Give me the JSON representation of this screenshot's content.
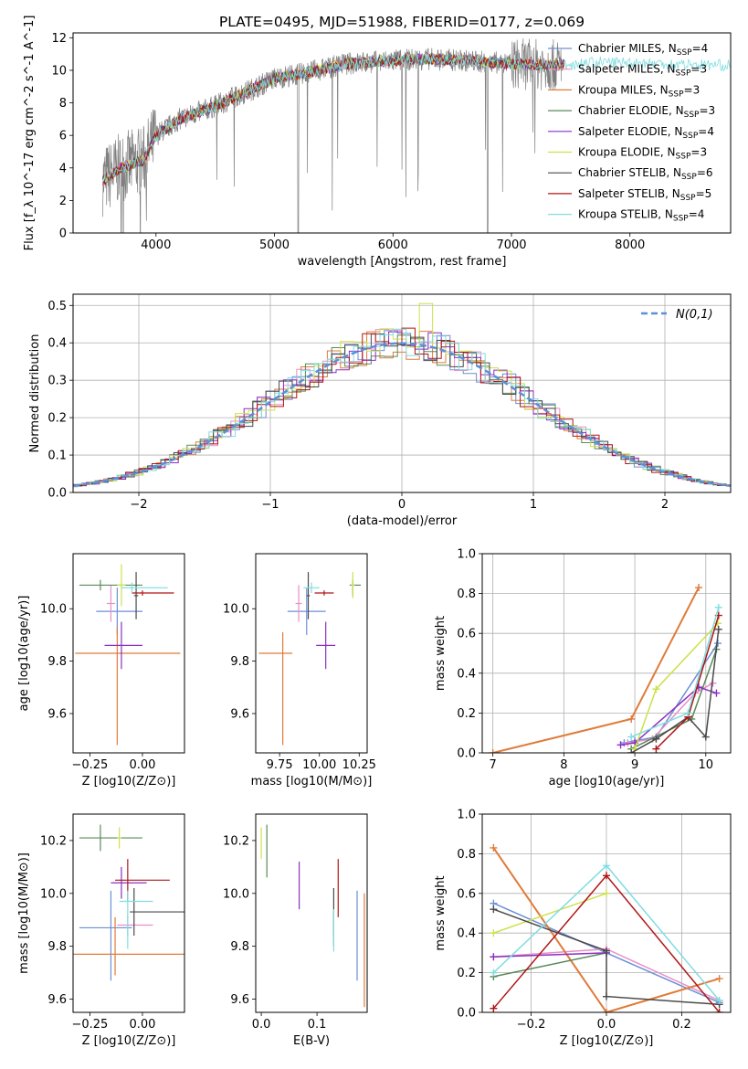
{
  "figure": {
    "title": "PLATE=0495, MJD=51988, FIBERID=0177, z=0.069"
  },
  "series": [
    {
      "name": "Chabrier MILES",
      "nssp": "4",
      "color": "#6b8fd6"
    },
    {
      "name": "Salpeter MILES",
      "nssp": "3",
      "color": "#e88fc7"
    },
    {
      "name": "Kroupa MILES",
      "nssp": "3",
      "color": "#e07b39"
    },
    {
      "name": "Chabrier ELODIE",
      "nssp": "3",
      "color": "#5a8a5a"
    },
    {
      "name": "Salpeter ELODIE",
      "nssp": "4",
      "color": "#8b2fc0"
    },
    {
      "name": "Kroupa ELODIE",
      "nssp": "3",
      "color": "#cde04a"
    },
    {
      "name": "Chabrier STELIB",
      "nssp": "6",
      "color": "#4a4a4a"
    },
    {
      "name": "Salpeter STELIB",
      "nssp": "5",
      "color": "#b01515"
    },
    {
      "name": "Kroupa STELIB",
      "nssp": "4",
      "color": "#7fdde0"
    }
  ],
  "chart_data": [
    {
      "id": "spectrum",
      "type": "line",
      "xlabel": "wavelength [Angstrom, rest frame]",
      "ylabel": "Flux [f_λ 10^-17 erg cm^-2 s^-1 A^-1]",
      "xlim": [
        3300,
        8850
      ],
      "ylim": [
        0,
        12.3
      ],
      "xticks": [
        4000,
        5000,
        6000,
        7000,
        8000
      ],
      "yticks": [
        0,
        2,
        4,
        6,
        8,
        10,
        12
      ],
      "data_color": "#808080",
      "data_wavelength_range": [
        3550,
        7420
      ],
      "continuum": {
        "x": [
          3550,
          3700,
          3900,
          4000,
          4200,
          4500,
          4800,
          5000,
          5300,
          5600,
          6000,
          6300,
          6600,
          7000,
          7400,
          7700,
          8000,
          8300,
          8850
        ],
        "y": [
          3.2,
          4.0,
          4.5,
          6.0,
          7.0,
          7.8,
          8.8,
          9.5,
          9.9,
          10.4,
          10.6,
          10.7,
          10.6,
          10.4,
          10.3,
          10.5,
          10.5,
          10.4,
          10.3
        ]
      },
      "legend_location": "right"
    },
    {
      "id": "residuals",
      "type": "histogram",
      "xlabel": "(data-model)/error",
      "ylabel": "Normed distribution",
      "xlim": [
        -2.5,
        2.5
      ],
      "ylim": [
        0,
        0.53
      ],
      "xticks": [
        -2,
        -1,
        0,
        1,
        2
      ],
      "yticks": [
        0.0,
        0.1,
        0.2,
        0.3,
        0.4,
        0.5
      ],
      "reference_curve": {
        "name": "N(0,1)",
        "color": "#5b8fd9",
        "style": "dashed"
      },
      "legend_location": "top-right",
      "grid": true
    },
    {
      "id": "age_vs_Z",
      "type": "errorbar",
      "xlabel": "Z [log10(Z/Z⊙)]",
      "ylabel": "age [log10(age/yr)]",
      "xlim": [
        -0.33,
        0.2
      ],
      "ylim": [
        9.45,
        10.21
      ],
      "xticks": [
        -0.25,
        0.0
      ],
      "yticks": [
        9.6,
        9.8,
        10.0
      ],
      "points": [
        {
          "series": 0,
          "x": -0.12,
          "y": 9.99,
          "xerr": [
            0.1,
            0.12
          ],
          "yerr": [
            0.09,
            0.09
          ]
        },
        {
          "series": 1,
          "x": -0.15,
          "y": 10.02,
          "xerr": [
            0.02,
            0.02
          ],
          "yerr": [
            0.07,
            0.07
          ]
        },
        {
          "series": 2,
          "x": -0.12,
          "y": 9.83,
          "xerr": [
            0.2,
            0.3
          ],
          "yerr": [
            0.35,
            0.1
          ]
        },
        {
          "series": 3,
          "x": -0.2,
          "y": 10.09,
          "xerr": [
            0.1,
            0.2
          ],
          "yerr": [
            0.02,
            0.02
          ]
        },
        {
          "series": 4,
          "x": -0.1,
          "y": 9.86,
          "xerr": [
            0.08,
            0.1
          ],
          "yerr": [
            0.09,
            0.09
          ]
        },
        {
          "series": 5,
          "x": -0.1,
          "y": 10.09,
          "xerr": [
            0.02,
            0.02
          ],
          "yerr": [
            0.08,
            0.08
          ]
        },
        {
          "series": 6,
          "x": -0.03,
          "y": 10.05,
          "xerr": [
            0.01,
            0.01
          ],
          "yerr": [
            0.09,
            0.09
          ]
        },
        {
          "series": 7,
          "x": 0.0,
          "y": 10.06,
          "xerr": [
            0.05,
            0.15
          ],
          "yerr": [
            0.01,
            0.01
          ]
        },
        {
          "series": 8,
          "x": -0.05,
          "y": 10.08,
          "xerr": [
            0.05,
            0.17
          ],
          "yerr": [
            0.02,
            0.02
          ]
        }
      ]
    },
    {
      "id": "age_vs_mass",
      "type": "errorbar",
      "xlabel": "mass [log10(M/M⊙)]",
      "xlim": [
        9.6,
        10.3
      ],
      "ylim": [
        9.45,
        10.21
      ],
      "xticks": [
        9.75,
        10.0,
        10.25
      ],
      "yticks": [
        9.6,
        9.8,
        10.0
      ],
      "points": [
        {
          "series": 0,
          "x": 9.92,
          "y": 9.99,
          "xerr": [
            0.12,
            0.12
          ],
          "yerr": [
            0.09,
            0.09
          ]
        },
        {
          "series": 1,
          "x": 9.87,
          "y": 10.02,
          "xerr": [
            0.02,
            0.02
          ],
          "yerr": [
            0.07,
            0.07
          ]
        },
        {
          "series": 2,
          "x": 9.77,
          "y": 9.83,
          "xerr": [
            0.15,
            0.06
          ],
          "yerr": [
            0.35,
            0.08
          ]
        },
        {
          "series": 3,
          "x": 10.21,
          "y": 10.09,
          "xerr": [
            0.02,
            0.05
          ],
          "yerr": [
            0.04,
            0.02
          ]
        },
        {
          "series": 4,
          "x": 10.04,
          "y": 9.86,
          "xerr": [
            0.06,
            0.06
          ],
          "yerr": [
            0.09,
            0.09
          ]
        },
        {
          "series": 5,
          "x": 10.21,
          "y": 10.09,
          "xerr": [
            0.01,
            0.01
          ],
          "yerr": [
            0.05,
            0.05
          ]
        },
        {
          "series": 6,
          "x": 9.93,
          "y": 10.05,
          "xerr": [
            0.01,
            0.01
          ],
          "yerr": [
            0.09,
            0.09
          ]
        },
        {
          "series": 7,
          "x": 10.03,
          "y": 10.06,
          "xerr": [
            0.06,
            0.06
          ],
          "yerr": [
            0.01,
            0.01
          ]
        },
        {
          "series": 8,
          "x": 9.95,
          "y": 10.08,
          "xerr": [
            0.05,
            0.05
          ],
          "yerr": [
            0.02,
            0.02
          ]
        }
      ]
    },
    {
      "id": "weight_vs_age",
      "type": "line",
      "xlabel": "age [log10(age/yr)]",
      "ylabel": "mass weight",
      "xlim": [
        6.85,
        10.35
      ],
      "ylim": [
        0,
        1.0
      ],
      "xticks": [
        7,
        8,
        9,
        10
      ],
      "yticks": [
        0.0,
        0.2,
        0.4,
        0.6,
        0.8,
        1.0
      ],
      "grid": true,
      "series_points": [
        {
          "series": 0,
          "x": [
            8.85,
            9.0,
            9.3,
            10.17
          ],
          "y": [
            0.05,
            0.06,
            0.08,
            0.55
          ]
        },
        {
          "series": 1,
          "x": [
            8.9,
            9.25,
            9.85,
            10.1
          ],
          "y": [
            0.05,
            0.07,
            0.3,
            0.35
          ]
        },
        {
          "series": 2,
          "x": [
            7.0,
            8.95,
            9.9
          ],
          "y": [
            0.0,
            0.17,
            0.83
          ]
        },
        {
          "series": 3,
          "x": [
            8.95,
            9.8,
            10.15
          ],
          "y": [
            0.02,
            0.17,
            0.52
          ]
        },
        {
          "series": 4,
          "x": [
            8.8,
            9.0,
            9.9,
            10.15
          ],
          "y": [
            0.04,
            0.05,
            0.33,
            0.3
          ]
        },
        {
          "series": 5,
          "x": [
            9.0,
            9.3,
            10.17
          ],
          "y": [
            0.02,
            0.32,
            0.65
          ]
        },
        {
          "series": 6,
          "x": [
            8.95,
            9.3,
            9.75,
            10.0,
            10.18
          ],
          "y": [
            0.0,
            0.07,
            0.18,
            0.08,
            0.62
          ]
        },
        {
          "series": 7,
          "x": [
            9.3,
            9.75,
            10.18
          ],
          "y": [
            0.02,
            0.18,
            0.69
          ]
        },
        {
          "series": 8,
          "x": [
            8.95,
            9.75,
            10.18
          ],
          "y": [
            0.08,
            0.2,
            0.73
          ]
        }
      ]
    },
    {
      "id": "mass_vs_Z",
      "type": "errorbar",
      "xlabel": "Z [log10(Z/Z⊙)]",
      "ylabel": "mass [log10(M/M⊙)]",
      "xlim": [
        -0.33,
        0.2
      ],
      "ylim": [
        9.55,
        10.3
      ],
      "xticks": [
        -0.25,
        0.0
      ],
      "yticks": [
        9.6,
        9.8,
        10.0,
        10.2
      ],
      "points": [
        {
          "series": 0,
          "x": -0.15,
          "y": 9.87,
          "xerr": [
            0.15,
            0.1
          ],
          "yerr": [
            0.2,
            0.14
          ]
        },
        {
          "series": 1,
          "x": -0.07,
          "y": 9.88,
          "xerr": [
            0.05,
            0.12
          ],
          "yerr": [
            0.04,
            0.04
          ]
        },
        {
          "series": 2,
          "x": -0.13,
          "y": 9.77,
          "xerr": [
            0.2,
            0.33
          ],
          "yerr": [
            0.08,
            0.14
          ]
        },
        {
          "series": 3,
          "x": -0.2,
          "y": 10.21,
          "xerr": [
            0.1,
            0.2
          ],
          "yerr": [
            0.05,
            0.05
          ]
        },
        {
          "series": 4,
          "x": -0.1,
          "y": 10.04,
          "xerr": [
            0.05,
            0.12
          ],
          "yerr": [
            0.06,
            0.06
          ]
        },
        {
          "series": 5,
          "x": -0.11,
          "y": 10.21,
          "xerr": [
            0.01,
            0.01
          ],
          "yerr": [
            0.04,
            0.04
          ]
        },
        {
          "series": 6,
          "x": -0.04,
          "y": 9.93,
          "xerr": [
            0.02,
            0.24
          ],
          "yerr": [
            0.09,
            0.09
          ]
        },
        {
          "series": 7,
          "x": -0.07,
          "y": 10.05,
          "xerr": [
            0.06,
            0.2
          ],
          "yerr": [
            0.08,
            0.08
          ]
        },
        {
          "series": 8,
          "x": -0.07,
          "y": 9.97,
          "xerr": [
            0.04,
            0.12
          ],
          "yerr": [
            0.18,
            0.04
          ]
        }
      ]
    },
    {
      "id": "mass_vs_EBV",
      "type": "errorbar",
      "xlabel": "E(B-V)",
      "xlim": [
        -0.01,
        0.19
      ],
      "ylim": [
        9.55,
        10.3
      ],
      "xticks": [
        0.0,
        0.1
      ],
      "yticks": [
        9.6,
        9.8,
        10.0,
        10.2
      ],
      "points": [
        {
          "series": 0,
          "x": 0.172,
          "y": 9.87,
          "xerr": [
            0,
            0
          ],
          "yerr": [
            0.2,
            0.14
          ]
        },
        {
          "series": 1,
          "x": 0.13,
          "y": 9.88,
          "xerr": [
            0,
            0
          ],
          "yerr": [
            0.04,
            0.04
          ]
        },
        {
          "series": 2,
          "x": 0.185,
          "y": 9.77,
          "xerr": [
            0,
            0
          ],
          "yerr": [
            0.2,
            0.23
          ]
        },
        {
          "series": 3,
          "x": 0.01,
          "y": 10.16,
          "xerr": [
            0,
            0
          ],
          "yerr": [
            0.1,
            0.1
          ]
        },
        {
          "series": 4,
          "x": 0.068,
          "y": 10.04,
          "xerr": [
            0,
            0
          ],
          "yerr": [
            0.1,
            0.08
          ]
        },
        {
          "series": 5,
          "x": 0.0,
          "y": 10.18,
          "xerr": [
            0,
            0
          ],
          "yerr": [
            0.05,
            0.07
          ]
        },
        {
          "series": 6,
          "x": 0.13,
          "y": 9.93,
          "xerr": [
            0,
            0
          ],
          "yerr": [
            0.13,
            0.09
          ]
        },
        {
          "series": 7,
          "x": 0.138,
          "y": 10.02,
          "xerr": [
            0,
            0
          ],
          "yerr": [
            0.11,
            0.11
          ]
        },
        {
          "series": 8,
          "x": 0.13,
          "y": 9.88,
          "xerr": [
            0,
            0
          ],
          "yerr": [
            0.1,
            0.06
          ]
        }
      ]
    },
    {
      "id": "weight_vs_Z",
      "type": "line",
      "xlabel": "Z [log10(Z/Z⊙)]",
      "ylabel": "mass weight",
      "xlim": [
        -0.33,
        0.33
      ],
      "ylim": [
        0,
        1.0
      ],
      "xticks": [
        -0.2,
        0.0,
        0.2
      ],
      "yticks": [
        0.0,
        0.2,
        0.4,
        0.6,
        0.8,
        1.0
      ],
      "grid": true,
      "series_points": [
        {
          "series": 0,
          "x": [
            -0.3,
            0.3
          ],
          "y": [
            0.55,
            0.05
          ]
        },
        {
          "series": 1,
          "x": [
            -0.3,
            0.0,
            0.3
          ],
          "y": [
            0.28,
            0.32,
            0.06
          ]
        },
        {
          "series": 2,
          "x": [
            -0.3,
            0.0,
            0.3
          ],
          "y": [
            0.83,
            0.0,
            0.17
          ]
        },
        {
          "series": 3,
          "x": [
            -0.3,
            0.0
          ],
          "y": [
            0.18,
            0.3
          ]
        },
        {
          "series": 4,
          "x": [
            -0.3,
            0.0
          ],
          "y": [
            0.28,
            0.3
          ]
        },
        {
          "series": 5,
          "x": [
            -0.3,
            0.0
          ],
          "y": [
            0.4,
            0.6
          ]
        },
        {
          "series": 6,
          "x": [
            -0.3,
            0.0,
            0.0,
            0.3
          ],
          "y": [
            0.52,
            0.31,
            0.08,
            0.04
          ]
        },
        {
          "series": 7,
          "x": [
            -0.3,
            0.0,
            0.3
          ],
          "y": [
            0.02,
            0.69,
            0.0
          ]
        },
        {
          "series": 8,
          "x": [
            -0.3,
            0.0,
            0.3
          ],
          "y": [
            0.2,
            0.74,
            0.06
          ]
        }
      ]
    }
  ]
}
